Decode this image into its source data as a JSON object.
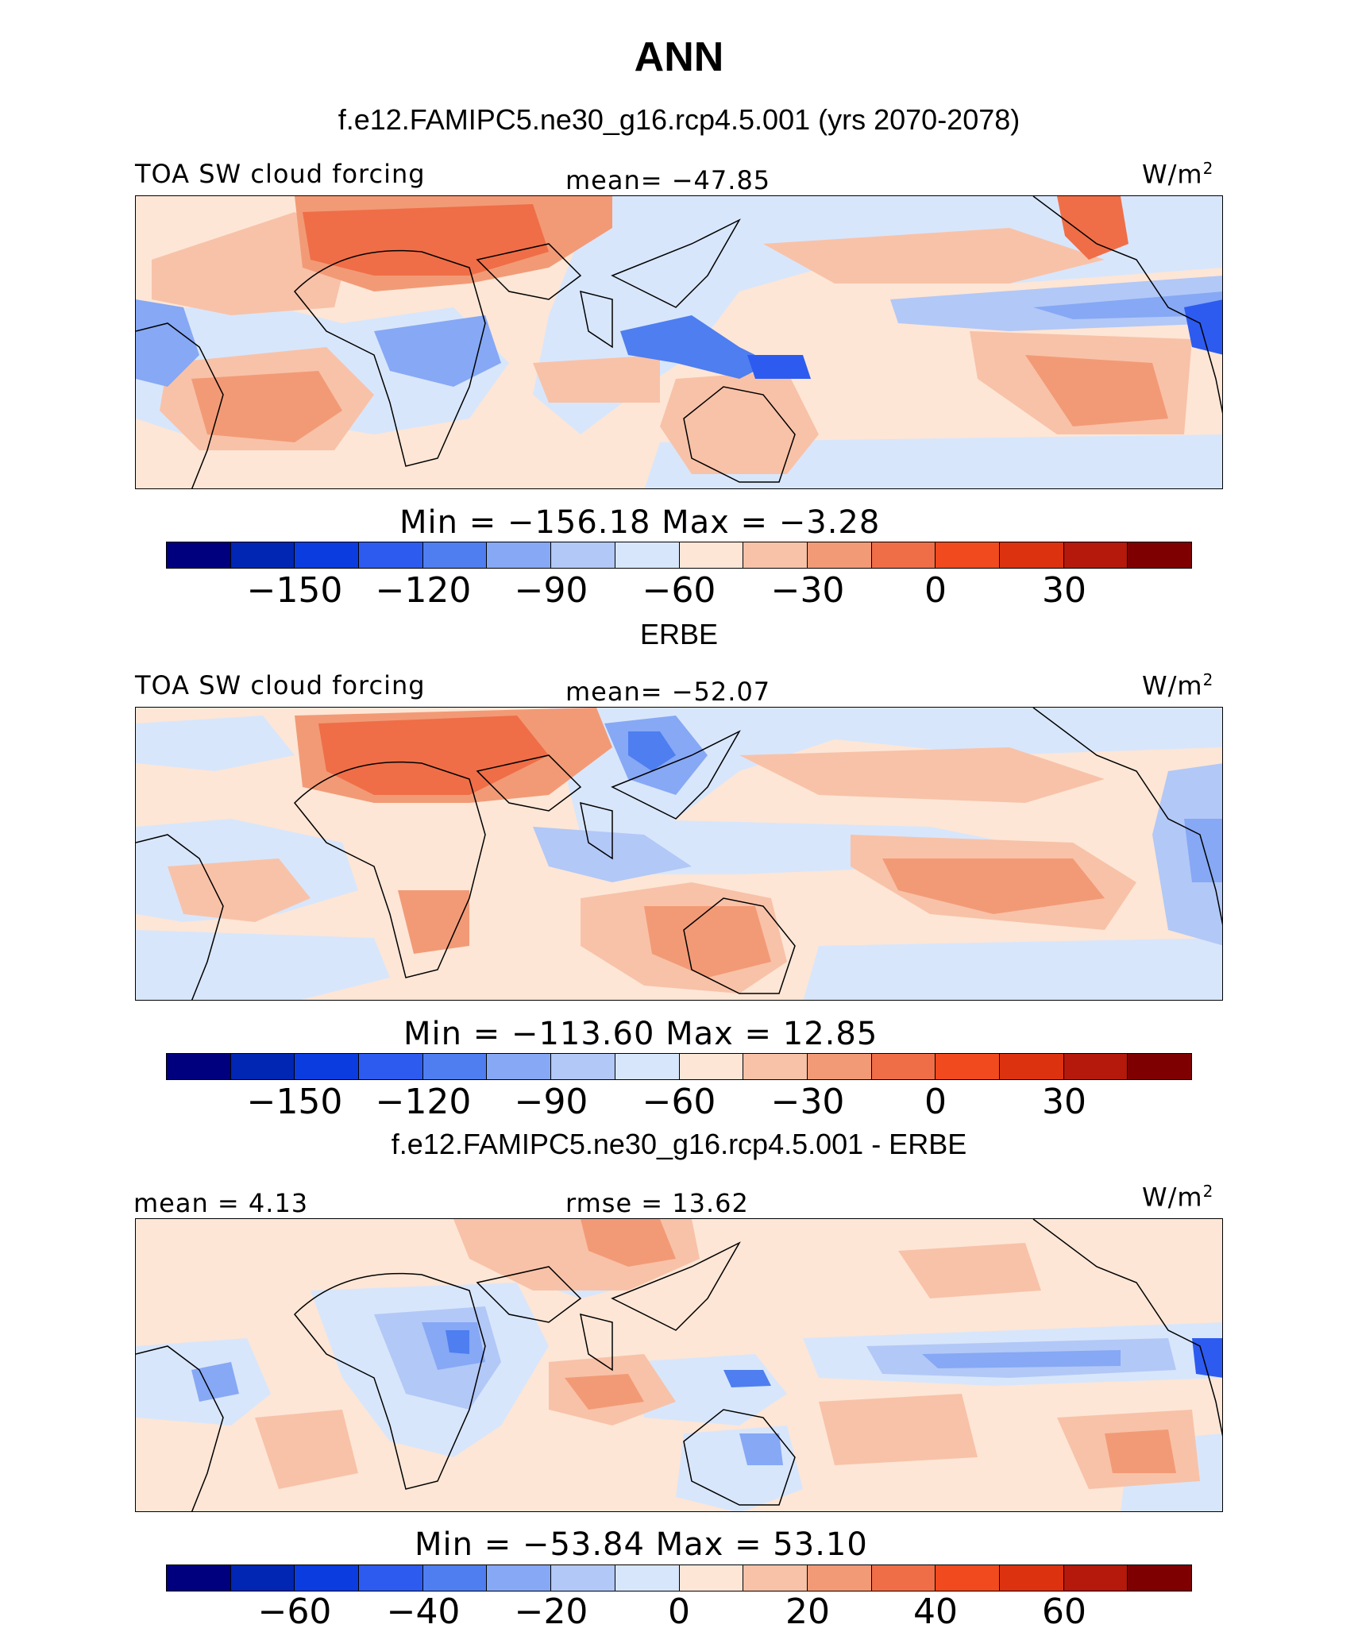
{
  "title": "ANN",
  "colors": {
    "abs_scale": [
      "#00007f",
      "#0026b3",
      "#0a3ce0",
      "#2d5bf0",
      "#4e7ef0",
      "#86a8f5",
      "#b2c8f7",
      "#d8e6fb",
      "#fde6d6",
      "#f8c2a8",
      "#f29a76",
      "#ef6e47",
      "#f04a1e",
      "#dc320f",
      "#b4190b",
      "#7f0000"
    ],
    "diff_scale": [
      "#00007f",
      "#0026b3",
      "#0a3ce0",
      "#2d5bf0",
      "#4e7ef0",
      "#86a8f5",
      "#b2c8f7",
      "#d8e6fb",
      "#fde6d6",
      "#f8c2a8",
      "#f29a76",
      "#ef6e47",
      "#f04a1e",
      "#dc320f",
      "#b4190b",
      "#7f0000"
    ]
  },
  "panels": [
    {
      "heading": "f.e12.FAMIPC5.ne30_g16.rcp4.5.001 (yrs 2070-2078)",
      "left_label": "TOA SW cloud forcing",
      "center_label": "mean= −47.85",
      "units_base": "W/m",
      "units_exp": "2",
      "min_max": "Min = −156.18 Max =  −3.28",
      "ticks": [
        "−150",
        "−120",
        "−90",
        "−60",
        "−30",
        "0",
        "30"
      ]
    },
    {
      "heading": "ERBE",
      "left_label": "TOA SW cloud forcing",
      "center_label": "mean= −52.07",
      "units_base": "W/m",
      "units_exp": "2",
      "min_max": "Min = −113.60 Max =  12.85",
      "ticks": [
        "−150",
        "−120",
        "−90",
        "−60",
        "−30",
        "0",
        "30"
      ]
    },
    {
      "heading": "f.e12.FAMIPC5.ne30_g16.rcp4.5.001 - ERBE",
      "left_label": "mean =   4.13",
      "center_label": "rmse =   13.62",
      "units_base": "W/m",
      "units_exp": "2",
      "min_max": "Min = −53.84 Max =  53.10",
      "ticks": [
        "−60",
        "−40",
        "−20",
        "0",
        "20",
        "40",
        "60"
      ]
    }
  ]
}
